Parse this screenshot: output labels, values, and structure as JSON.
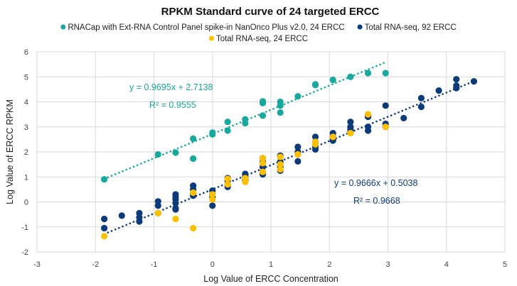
{
  "chart_data": {
    "type": "scatter",
    "title": "RPKM Standard curve of 24 targeted ERCC",
    "xlabel": "Log Value of ERCC Concentration",
    "ylabel": "Log Value of ERCC RPKM",
    "xlim": [
      -3,
      5
    ],
    "ylim": [
      -2,
      6
    ],
    "xticks": [
      "-3",
      "-2",
      "-1",
      "0",
      "1",
      "2",
      "3",
      "4",
      "5"
    ],
    "yticks": [
      "-2",
      "-1",
      "0",
      "1",
      "2",
      "3",
      "4",
      "5",
      "6"
    ],
    "grid": true,
    "legend_position": "top",
    "series": [
      {
        "name": "RNACap with Ext-RNA Control Panel spike-in NanOnco Plus v2.0, 24 ERCC",
        "color": "#17A89E",
        "trendline": {
          "slope": 0.9695,
          "intercept": 2.7138,
          "x_range": [
            -1.85,
            2.96
          ],
          "equation": "y = 0.9695x + 2.7138",
          "r2": "R² = 0.9555"
        },
        "points": [
          [
            -1.85,
            0.9
          ],
          [
            -0.93,
            1.9
          ],
          [
            -0.63,
            1.97
          ],
          [
            -0.33,
            2.53
          ],
          [
            -0.33,
            1.73
          ],
          [
            0,
            2.7
          ],
          [
            0,
            2.77
          ],
          [
            0.26,
            3.2
          ],
          [
            0.26,
            2.85
          ],
          [
            0.56,
            3.3
          ],
          [
            0.56,
            3.15
          ],
          [
            0.86,
            3.45
          ],
          [
            0.86,
            3.95
          ],
          [
            0.86,
            4.02
          ],
          [
            1.16,
            3.57
          ],
          [
            1.16,
            3.85
          ],
          [
            1.16,
            4.0
          ],
          [
            1.46,
            4.22
          ],
          [
            1.76,
            4.67
          ],
          [
            1.76,
            4.7
          ],
          [
            2.06,
            4.88
          ],
          [
            2.36,
            5.0
          ],
          [
            2.66,
            5.15
          ],
          [
            2.96,
            5.15
          ]
        ]
      },
      {
        "name": "Total RNA-seq, 92 ERCC",
        "color": "#0D3B7A",
        "trendline": {
          "slope": 0.9666,
          "intercept": 0.5038,
          "x_range": [
            -1.85,
            4.47
          ],
          "equation": "y = 0.9666x + 0.5038",
          "r2": "R² = 0.9668"
        },
        "points": [
          [
            -1.85,
            -0.68
          ],
          [
            -1.85,
            -1.05
          ],
          [
            -1.55,
            -0.55
          ],
          [
            -1.25,
            -0.45
          ],
          [
            -1.25,
            -0.62
          ],
          [
            -1.25,
            -0.78
          ],
          [
            -0.93,
            0.02
          ],
          [
            -0.93,
            -0.15
          ],
          [
            -0.93,
            -0.45
          ],
          [
            -0.63,
            0.3
          ],
          [
            -0.63,
            0.2
          ],
          [
            -0.63,
            0.1
          ],
          [
            -0.63,
            -0.05
          ],
          [
            -0.63,
            -0.25
          ],
          [
            -0.63,
            -0.3
          ],
          [
            -0.33,
            0.65
          ],
          [
            -0.33,
            0.5
          ],
          [
            -0.33,
            0.25
          ],
          [
            -0.33,
            0.35
          ],
          [
            0,
            0.45
          ],
          [
            0,
            0.3
          ],
          [
            0,
            0.2
          ],
          [
            0,
            -0.15
          ],
          [
            0.26,
            0.95
          ],
          [
            0.26,
            0.85
          ],
          [
            0.26,
            0.7
          ],
          [
            0.26,
            0.6
          ],
          [
            0.56,
            1.12
          ],
          [
            0.56,
            1.0
          ],
          [
            0.56,
            0.9
          ],
          [
            0.56,
            0.85
          ],
          [
            0.86,
            1.75
          ],
          [
            0.86,
            1.6
          ],
          [
            0.86,
            1.4
          ],
          [
            0.86,
            1.2
          ],
          [
            0.86,
            1.1
          ],
          [
            1.16,
            1.85
          ],
          [
            1.16,
            1.6
          ],
          [
            1.16,
            1.5
          ],
          [
            1.16,
            1.4
          ],
          [
            1.16,
            1.25
          ],
          [
            1.46,
            2.2
          ],
          [
            1.46,
            2.0
          ],
          [
            1.46,
            1.9
          ],
          [
            1.46,
            1.62
          ],
          [
            1.76,
            2.6
          ],
          [
            1.76,
            2.4
          ],
          [
            1.76,
            2.2
          ],
          [
            1.76,
            2.1
          ],
          [
            2.06,
            2.75
          ],
          [
            2.06,
            2.62
          ],
          [
            2.06,
            2.5
          ],
          [
            2.06,
            2.45
          ],
          [
            2.36,
            3.2
          ],
          [
            2.36,
            3.0
          ],
          [
            2.36,
            2.9
          ],
          [
            2.36,
            2.8
          ],
          [
            2.66,
            3.45
          ],
          [
            2.66,
            3.4
          ],
          [
            2.66,
            3.0
          ],
          [
            2.66,
            2.85
          ],
          [
            2.96,
            3.85
          ],
          [
            2.96,
            3.12
          ],
          [
            2.96,
            3.0
          ],
          [
            3.27,
            3.35
          ],
          [
            3.57,
            4.15
          ],
          [
            3.57,
            3.8
          ],
          [
            3.87,
            4.45
          ],
          [
            4.17,
            4.9
          ],
          [
            4.17,
            4.65
          ],
          [
            4.17,
            4.55
          ],
          [
            4.47,
            4.82
          ]
        ]
      },
      {
        "name": "Total RNA-seq, 24 ERCC",
        "color": "#FFC000",
        "points": [
          [
            -1.85,
            -1.37
          ],
          [
            -0.93,
            -0.45
          ],
          [
            -0.63,
            -0.68
          ],
          [
            -0.33,
            0.37
          ],
          [
            -0.33,
            -1.05
          ],
          [
            0,
            0.3
          ],
          [
            0,
            0.1
          ],
          [
            0.26,
            0.92
          ],
          [
            0.26,
            0.7
          ],
          [
            0.56,
            0.95
          ],
          [
            0.56,
            0.8
          ],
          [
            0.86,
            1.75
          ],
          [
            0.86,
            1.55
          ],
          [
            0.86,
            1.2
          ],
          [
            1.16,
            1.8
          ],
          [
            1.16,
            1.5
          ],
          [
            1.16,
            1.3
          ],
          [
            1.46,
            1.9
          ],
          [
            1.76,
            2.4
          ],
          [
            1.76,
            2.3
          ],
          [
            2.06,
            2.6
          ],
          [
            2.36,
            2.75
          ],
          [
            2.66,
            3.5
          ],
          [
            2.96,
            3.0
          ]
        ]
      }
    ]
  }
}
